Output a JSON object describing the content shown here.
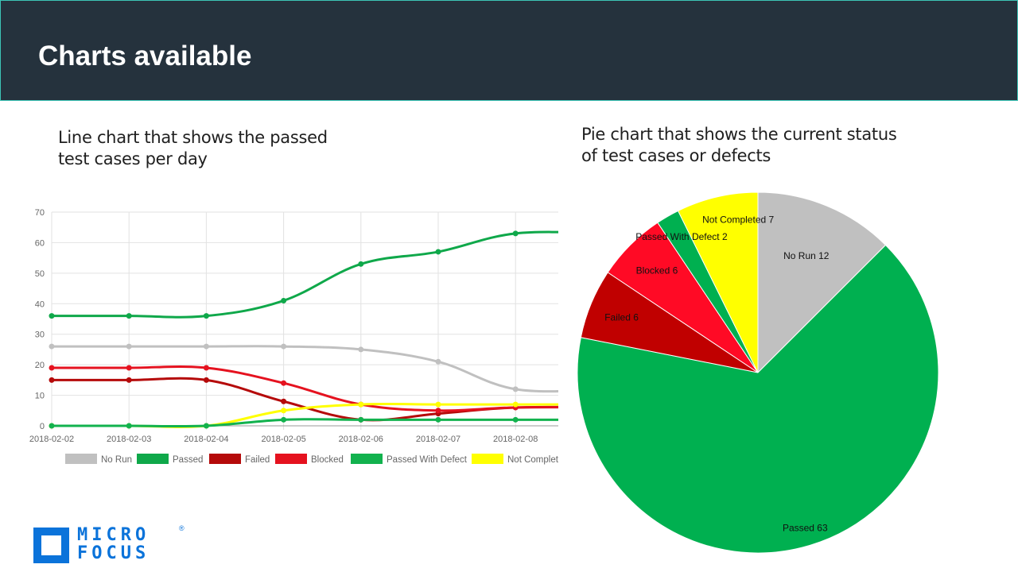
{
  "header": {
    "title": "Charts available"
  },
  "captions": {
    "left": "Line chart that shows the passed test cases per day",
    "right": "Pie chart that shows the current status of test cases or defects"
  },
  "logo": {
    "line1": "MICRO",
    "line2": "FOCUS",
    "reg": "®"
  },
  "colors": {
    "header_bg": "#25323d",
    "header_border": "#3cc4b6",
    "brand": "#0b73da"
  },
  "chart_data": [
    {
      "type": "line",
      "title": "",
      "xlabel": "",
      "ylabel": "",
      "x": [
        "2018-02-02",
        "2018-02-03",
        "2018-02-04",
        "2018-02-05",
        "2018-02-06",
        "2018-02-07",
        "2018-02-08"
      ],
      "ylim": [
        0,
        70
      ],
      "yticks": [
        0,
        10,
        20,
        30,
        40,
        50,
        60,
        70
      ],
      "grid": true,
      "legend": "bottom",
      "series": [
        {
          "name": "No Run",
          "color": "#c0c0c0",
          "values": [
            26,
            26,
            26,
            26,
            25,
            21,
            12
          ]
        },
        {
          "name": "Passed",
          "color": "#0fa84a",
          "values": [
            36,
            36,
            36,
            41,
            53,
            57,
            63
          ]
        },
        {
          "name": "Failed",
          "color": "#b50a0a",
          "values": [
            15,
            15,
            15,
            8,
            2,
            4,
            6
          ]
        },
        {
          "name": "Blocked",
          "color": "#e5121f",
          "values": [
            19,
            19,
            19,
            14,
            7,
            5,
            6
          ]
        },
        {
          "name": "Passed With Defect",
          "color": "#12b24e",
          "values": [
            0,
            0,
            0,
            2,
            2,
            2,
            2
          ]
        },
        {
          "name": "Not Complet",
          "color": "#ffff00",
          "values": [
            0,
            0,
            0,
            5,
            7,
            7,
            7
          ]
        }
      ]
    },
    {
      "type": "pie",
      "title": "",
      "legend": "none",
      "slices": [
        {
          "label": "No Run",
          "value": 12,
          "color": "#c0c0c0"
        },
        {
          "label": "Passed",
          "value": 63,
          "color": "#00b050"
        },
        {
          "label": "Failed",
          "value": 6,
          "color": "#c00000"
        },
        {
          "label": "Blocked",
          "value": 6,
          "color": "#ff0a25"
        },
        {
          "label": "Passed With Defect",
          "value": 2,
          "color": "#00b050"
        },
        {
          "label": "Not Completed",
          "value": 7,
          "color": "#ffff00"
        }
      ]
    }
  ]
}
